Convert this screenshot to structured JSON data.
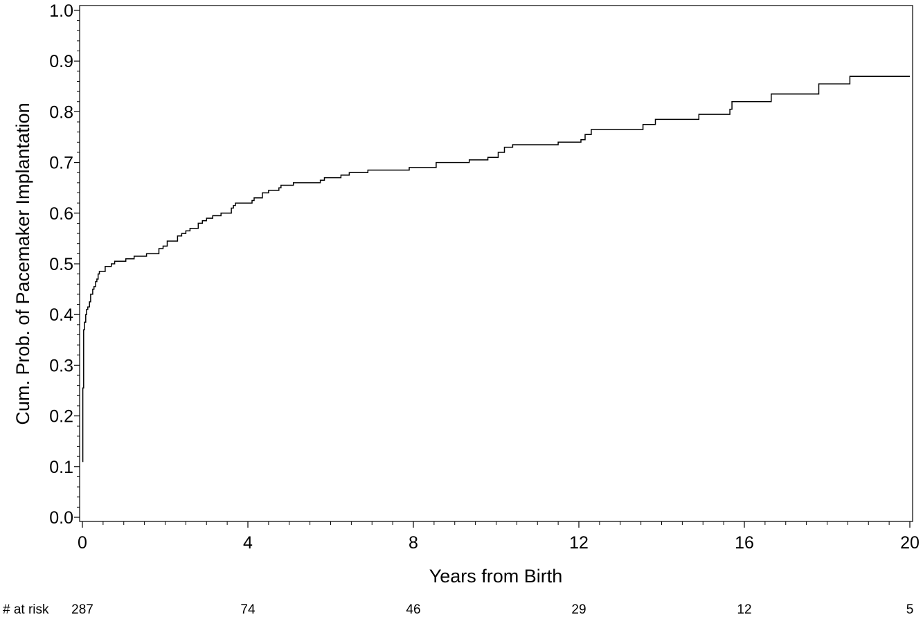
{
  "chart_data": {
    "type": "line",
    "step": true,
    "title": "",
    "xlabel": "Years from Birth",
    "ylabel": "Cum. Prob. of Pacemaker Implantation",
    "xlim": [
      0,
      20
    ],
    "ylim": [
      0,
      1
    ],
    "x_ticks": [
      0,
      4,
      8,
      12,
      16,
      20
    ],
    "y_ticks": [
      0.0,
      0.1,
      0.2,
      0.3,
      0.4,
      0.5,
      0.6,
      0.7,
      0.8,
      0.9,
      1.0
    ],
    "x_tick_labels": [
      "0",
      "4",
      "8",
      "12",
      "16",
      "20"
    ],
    "y_tick_labels": [
      "0.0",
      "0.1",
      "0.2",
      "0.3",
      "0.4",
      "0.5",
      "0.6",
      "0.7",
      "0.8",
      "0.9",
      "1.0"
    ],
    "grid": false,
    "legend": "none",
    "line_color": "#000000",
    "series": [
      {
        "x": [
          0.0,
          0.01,
          0.03,
          0.05,
          0.08,
          0.1,
          0.13,
          0.17,
          0.2,
          0.25,
          0.28,
          0.32,
          0.35,
          0.38,
          0.41,
          0.44,
          0.48,
          0.52,
          0.55,
          0.7,
          0.78,
          0.88,
          1.05,
          1.25,
          1.55,
          1.85,
          1.95,
          2.05,
          2.3,
          2.4,
          2.5,
          2.6,
          2.8,
          2.9,
          3.0,
          3.15,
          3.35,
          3.6,
          3.65,
          3.7,
          4.1,
          4.15,
          4.35,
          4.5,
          4.75,
          4.8,
          5.1,
          5.75,
          5.85,
          6.25,
          6.45,
          6.9,
          7.9,
          8.55,
          9.35,
          9.8,
          10.05,
          10.2,
          10.4,
          11.5,
          12.05,
          12.15,
          12.3,
          13.55,
          13.85,
          14.9,
          15.65,
          15.7,
          16.65,
          17.8,
          18.55,
          20.0
        ],
        "y": [
          0.11,
          0.255,
          0.37,
          0.385,
          0.4,
          0.41,
          0.415,
          0.425,
          0.44,
          0.45,
          0.455,
          0.465,
          0.47,
          0.48,
          0.485,
          0.485,
          0.485,
          0.485,
          0.495,
          0.5,
          0.505,
          0.505,
          0.51,
          0.515,
          0.52,
          0.53,
          0.535,
          0.545,
          0.555,
          0.56,
          0.565,
          0.57,
          0.58,
          0.585,
          0.59,
          0.595,
          0.6,
          0.61,
          0.615,
          0.62,
          0.625,
          0.63,
          0.64,
          0.645,
          0.65,
          0.655,
          0.66,
          0.665,
          0.67,
          0.675,
          0.68,
          0.685,
          0.69,
          0.7,
          0.705,
          0.71,
          0.72,
          0.73,
          0.735,
          0.74,
          0.745,
          0.755,
          0.765,
          0.775,
          0.785,
          0.795,
          0.805,
          0.82,
          0.835,
          0.855,
          0.87,
          0.87
        ]
      }
    ],
    "at_risk": {
      "label": "# at risk",
      "x": [
        0,
        4,
        8,
        12,
        16,
        20
      ],
      "values": [
        "287",
        "74",
        "46",
        "29",
        "12",
        "5"
      ]
    }
  }
}
